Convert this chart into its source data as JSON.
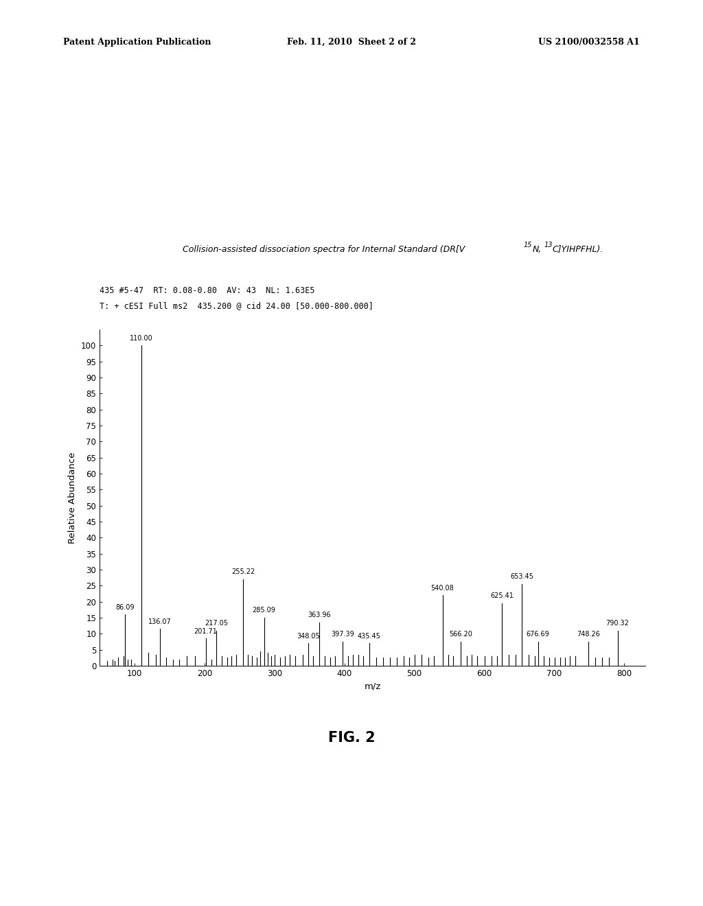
{
  "page_header_left": "Patent Application Publication",
  "page_header_mid": "Feb. 11, 2010  Sheet 2 of 2",
  "page_header_right": "US 2100/0032558 A1",
  "spectrum_header_line1": "435 #5-47  RT: 0.08-0.80  AV: 43  NL: 1.63E5",
  "spectrum_header_line2": "T: + cESI Full ms2  435.200 @ cid 24.00 [50.000-800.000]",
  "figure_label": "FIG. 2",
  "xlabel": "m/z",
  "ylabel": "Relative Abundance",
  "xlim": [
    50,
    830
  ],
  "ylim": [
    0,
    105
  ],
  "xticks": [
    100,
    200,
    300,
    400,
    500,
    600,
    700,
    800
  ],
  "yticks": [
    0,
    5,
    10,
    15,
    20,
    25,
    30,
    35,
    40,
    45,
    50,
    55,
    60,
    65,
    70,
    75,
    80,
    85,
    90,
    95,
    100
  ],
  "peaks": [
    {
      "mz": 60.5,
      "rel": 1.5,
      "label": null
    },
    {
      "mz": 69.0,
      "rel": 2.0,
      "label": null
    },
    {
      "mz": 72.0,
      "rel": 1.5,
      "label": null
    },
    {
      "mz": 76.0,
      "rel": 2.5,
      "label": null
    },
    {
      "mz": 84.0,
      "rel": 3.0,
      "label": null
    },
    {
      "mz": 86.09,
      "rel": 16.0,
      "label": "86.09"
    },
    {
      "mz": 90.0,
      "rel": 2.0,
      "label": null
    },
    {
      "mz": 95.0,
      "rel": 2.0,
      "label": null
    },
    {
      "mz": 110.0,
      "rel": 100.0,
      "label": "110.00"
    },
    {
      "mz": 120.0,
      "rel": 4.0,
      "label": null
    },
    {
      "mz": 130.0,
      "rel": 3.5,
      "label": null
    },
    {
      "mz": 136.07,
      "rel": 11.5,
      "label": "136.07"
    },
    {
      "mz": 145.0,
      "rel": 2.5,
      "label": null
    },
    {
      "mz": 155.0,
      "rel": 2.0,
      "label": null
    },
    {
      "mz": 164.0,
      "rel": 2.0,
      "label": null
    },
    {
      "mz": 175.0,
      "rel": 3.0,
      "label": null
    },
    {
      "mz": 186.0,
      "rel": 3.0,
      "label": null
    },
    {
      "mz": 201.71,
      "rel": 8.5,
      "label": "201.71"
    },
    {
      "mz": 210.0,
      "rel": 2.0,
      "label": null
    },
    {
      "mz": 217.05,
      "rel": 11.0,
      "label": "217.05"
    },
    {
      "mz": 225.0,
      "rel": 3.0,
      "label": null
    },
    {
      "mz": 232.0,
      "rel": 2.5,
      "label": null
    },
    {
      "mz": 238.0,
      "rel": 3.0,
      "label": null
    },
    {
      "mz": 245.0,
      "rel": 3.5,
      "label": null
    },
    {
      "mz": 255.22,
      "rel": 27.0,
      "label": "255.22"
    },
    {
      "mz": 262.0,
      "rel": 3.5,
      "label": null
    },
    {
      "mz": 268.0,
      "rel": 3.0,
      "label": null
    },
    {
      "mz": 275.0,
      "rel": 2.5,
      "label": null
    },
    {
      "mz": 280.0,
      "rel": 4.5,
      "label": null
    },
    {
      "mz": 285.09,
      "rel": 15.0,
      "label": "285.09"
    },
    {
      "mz": 290.0,
      "rel": 4.0,
      "label": null
    },
    {
      "mz": 295.0,
      "rel": 3.0,
      "label": null
    },
    {
      "mz": 300.0,
      "rel": 3.5,
      "label": null
    },
    {
      "mz": 308.0,
      "rel": 2.5,
      "label": null
    },
    {
      "mz": 315.0,
      "rel": 3.0,
      "label": null
    },
    {
      "mz": 322.0,
      "rel": 3.5,
      "label": null
    },
    {
      "mz": 330.0,
      "rel": 3.0,
      "label": null
    },
    {
      "mz": 340.0,
      "rel": 3.5,
      "label": null
    },
    {
      "mz": 348.05,
      "rel": 7.0,
      "label": "348.05"
    },
    {
      "mz": 355.0,
      "rel": 3.0,
      "label": null
    },
    {
      "mz": 363.96,
      "rel": 13.5,
      "label": "363.96"
    },
    {
      "mz": 372.0,
      "rel": 3.0,
      "label": null
    },
    {
      "mz": 380.0,
      "rel": 2.5,
      "label": null
    },
    {
      "mz": 387.0,
      "rel": 3.0,
      "label": null
    },
    {
      "mz": 397.39,
      "rel": 7.5,
      "label": "397.39"
    },
    {
      "mz": 405.0,
      "rel": 3.0,
      "label": null
    },
    {
      "mz": 412.0,
      "rel": 3.5,
      "label": null
    },
    {
      "mz": 420.0,
      "rel": 3.5,
      "label": null
    },
    {
      "mz": 427.0,
      "rel": 3.0,
      "label": null
    },
    {
      "mz": 435.45,
      "rel": 7.0,
      "label": "435.45"
    },
    {
      "mz": 445.0,
      "rel": 2.5,
      "label": null
    },
    {
      "mz": 455.0,
      "rel": 2.5,
      "label": null
    },
    {
      "mz": 465.0,
      "rel": 2.5,
      "label": null
    },
    {
      "mz": 475.0,
      "rel": 2.5,
      "label": null
    },
    {
      "mz": 485.0,
      "rel": 3.0,
      "label": null
    },
    {
      "mz": 492.0,
      "rel": 2.5,
      "label": null
    },
    {
      "mz": 500.0,
      "rel": 3.5,
      "label": null
    },
    {
      "mz": 510.0,
      "rel": 3.5,
      "label": null
    },
    {
      "mz": 520.0,
      "rel": 2.5,
      "label": null
    },
    {
      "mz": 528.0,
      "rel": 3.0,
      "label": null
    },
    {
      "mz": 540.08,
      "rel": 22.0,
      "label": "540.08"
    },
    {
      "mz": 548.0,
      "rel": 3.5,
      "label": null
    },
    {
      "mz": 555.0,
      "rel": 3.0,
      "label": null
    },
    {
      "mz": 566.2,
      "rel": 7.5,
      "label": "566.20"
    },
    {
      "mz": 575.0,
      "rel": 3.0,
      "label": null
    },
    {
      "mz": 582.0,
      "rel": 3.5,
      "label": null
    },
    {
      "mz": 590.0,
      "rel": 3.0,
      "label": null
    },
    {
      "mz": 600.0,
      "rel": 3.0,
      "label": null
    },
    {
      "mz": 610.0,
      "rel": 3.0,
      "label": null
    },
    {
      "mz": 618.0,
      "rel": 3.0,
      "label": null
    },
    {
      "mz": 625.41,
      "rel": 19.5,
      "label": "625.41"
    },
    {
      "mz": 635.0,
      "rel": 3.5,
      "label": null
    },
    {
      "mz": 645.0,
      "rel": 3.5,
      "label": null
    },
    {
      "mz": 653.45,
      "rel": 25.5,
      "label": "653.45"
    },
    {
      "mz": 663.0,
      "rel": 3.5,
      "label": null
    },
    {
      "mz": 672.0,
      "rel": 3.0,
      "label": null
    },
    {
      "mz": 676.69,
      "rel": 7.5,
      "label": "676.69"
    },
    {
      "mz": 685.0,
      "rel": 3.0,
      "label": null
    },
    {
      "mz": 693.0,
      "rel": 2.5,
      "label": null
    },
    {
      "mz": 700.0,
      "rel": 2.5,
      "label": null
    },
    {
      "mz": 708.0,
      "rel": 2.5,
      "label": null
    },
    {
      "mz": 715.0,
      "rel": 2.5,
      "label": null
    },
    {
      "mz": 722.0,
      "rel": 3.0,
      "label": null
    },
    {
      "mz": 730.0,
      "rel": 3.0,
      "label": null
    },
    {
      "mz": 748.26,
      "rel": 7.5,
      "label": "748.26"
    },
    {
      "mz": 758.0,
      "rel": 2.5,
      "label": null
    },
    {
      "mz": 768.0,
      "rel": 2.5,
      "label": null
    },
    {
      "mz": 778.0,
      "rel": 2.5,
      "label": null
    },
    {
      "mz": 790.32,
      "rel": 11.0,
      "label": "790.32"
    }
  ],
  "background_color": "#ffffff",
  "text_color": "#000000",
  "bar_color": "#000000",
  "label_fontsize": 7.0,
  "axis_fontsize": 8.5,
  "header_fontsize": 8.5,
  "caption_fontsize": 9.0
}
